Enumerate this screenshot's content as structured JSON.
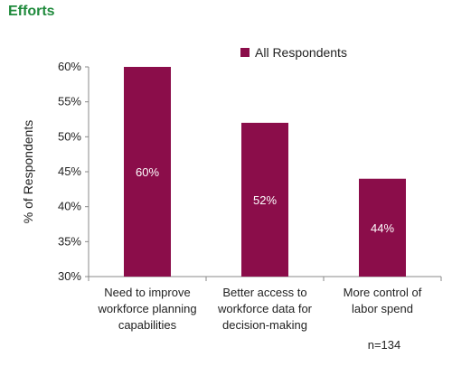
{
  "page": {
    "title": "Efforts"
  },
  "chart_data": {
    "type": "bar",
    "categories": [
      [
        "Need to improve",
        "workforce planning",
        "capabilities"
      ],
      [
        "Better access to",
        "workforce data for",
        "decision-making"
      ],
      [
        "More control of",
        "labor spend"
      ]
    ],
    "series": [
      {
        "name": "All Respondents",
        "values": [
          60,
          52,
          44
        ],
        "color": "#8b0d4a"
      }
    ],
    "data_labels": [
      "60%",
      "52%",
      "44%"
    ],
    "ylabel": "% of Respondents",
    "xlabel": "",
    "ylim": [
      30,
      60
    ],
    "yticks": [
      30,
      35,
      40,
      45,
      50,
      55,
      60
    ],
    "ytick_suffix": "%",
    "grid": false,
    "legend_position": "top-right",
    "annotation": "n=134"
  }
}
